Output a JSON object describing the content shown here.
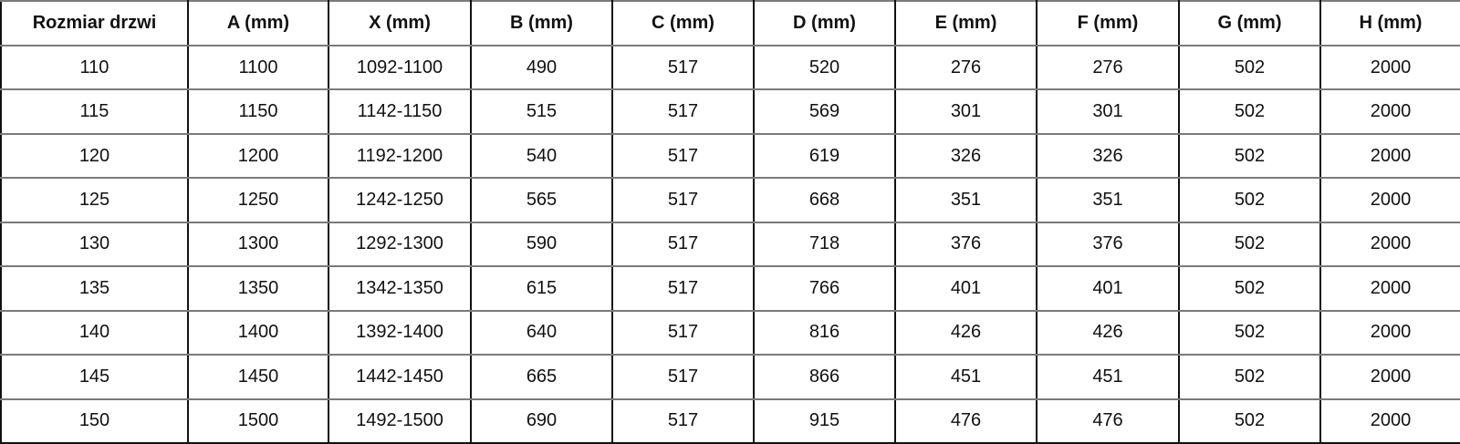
{
  "headers": [
    "Rozmiar drzwi",
    "A (mm)",
    "X (mm)",
    "B (mm)",
    "C (mm)",
    "D (mm)",
    "E (mm)",
    "F (mm)",
    "G (mm)",
    "H (mm)"
  ],
  "rows": [
    [
      "110",
      "1100",
      "1092-1100",
      "490",
      "517",
      "520",
      "276",
      "276",
      "502",
      "2000"
    ],
    [
      "115",
      "1150",
      "1142-1150",
      "515",
      "517",
      "569",
      "301",
      "301",
      "502",
      "2000"
    ],
    [
      "120",
      "1200",
      "1192-1200",
      "540",
      "517",
      "619",
      "326",
      "326",
      "502",
      "2000"
    ],
    [
      "125",
      "1250",
      "1242-1250",
      "565",
      "517",
      "668",
      "351",
      "351",
      "502",
      "2000"
    ],
    [
      "130",
      "1300",
      "1292-1300",
      "590",
      "517",
      "718",
      "376",
      "376",
      "502",
      "2000"
    ],
    [
      "135",
      "1350",
      "1342-1350",
      "615",
      "517",
      "766",
      "401",
      "401",
      "502",
      "2000"
    ],
    [
      "140",
      "1400",
      "1392-1400",
      "640",
      "517",
      "816",
      "426",
      "426",
      "502",
      "2000"
    ],
    [
      "145",
      "1450",
      "1442-1450",
      "665",
      "517",
      "866",
      "451",
      "451",
      "502",
      "2000"
    ],
    [
      "150",
      "1500",
      "1492-1500",
      "690",
      "517",
      "915",
      "476",
      "476",
      "502",
      "2000"
    ]
  ]
}
